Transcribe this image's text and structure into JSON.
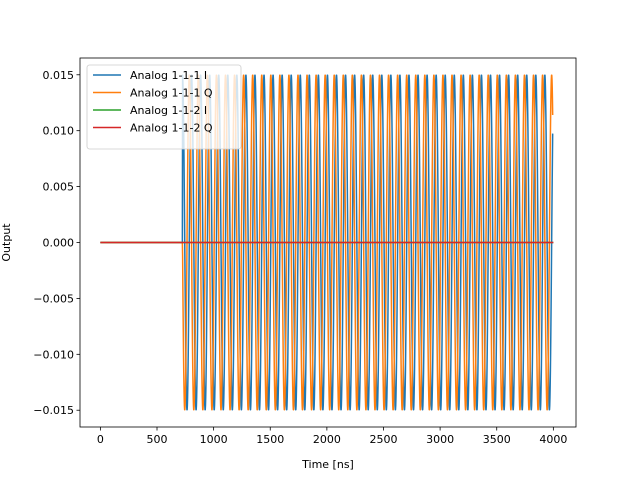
{
  "chart_data": {
    "type": "line",
    "title": "",
    "xlabel": "Time [ns]",
    "ylabel": "Output",
    "xlim": [
      -180,
      4200
    ],
    "ylim": [
      -0.0165,
      0.0165
    ],
    "xticks": [
      0,
      500,
      1000,
      1500,
      2000,
      2500,
      3000,
      3500,
      4000
    ],
    "xtick_labels": [
      "0",
      "500",
      "1000",
      "1500",
      "2000",
      "2500",
      "3000",
      "3500",
      "4000"
    ],
    "yticks": [
      -0.015,
      -0.01,
      -0.005,
      0.0,
      0.005,
      0.01,
      0.015
    ],
    "ytick_labels": [
      "−0.015",
      "−0.010",
      "−0.005",
      "0.000",
      "0.005",
      "0.010",
      "0.015"
    ],
    "grid": false,
    "legend_position": "top-left",
    "series": [
      {
        "name": "Analog 1-1-1 I",
        "color": "#1f77b4",
        "kind": "cosine-burst",
        "x_range": [
          0,
          3995
        ],
        "on_start": 725,
        "amplitude": 0.015,
        "period_ns": 80,
        "phase": 0
      },
      {
        "name": "Analog 1-1-1 Q",
        "color": "#ff7f0e",
        "kind": "cosine-burst",
        "x_range": [
          0,
          3995
        ],
        "on_start": 725,
        "amplitude": 0.015,
        "period_ns": 80,
        "phase": 1.5708
      },
      {
        "name": "Analog 1-1-2 I",
        "color": "#2ca02c",
        "kind": "constant",
        "x": [
          0,
          4000
        ],
        "y": [
          0.0,
          0.0
        ]
      },
      {
        "name": "Analog 1-1-2 Q",
        "color": "#d62728",
        "kind": "constant",
        "x": [
          0,
          4000
        ],
        "y": [
          0.0,
          0.0
        ]
      }
    ]
  }
}
